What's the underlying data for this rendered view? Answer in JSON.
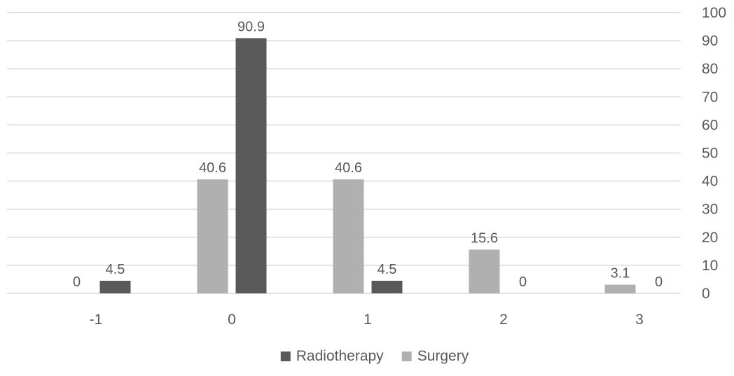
{
  "chart_data": {
    "type": "bar",
    "categories": [
      "-1",
      "0",
      "1",
      "2",
      "3"
    ],
    "series": [
      {
        "name": "Surgery",
        "color": "#b0b0b0",
        "values": [
          0,
          40.6,
          40.6,
          15.6,
          3.1
        ]
      },
      {
        "name": "Radiotherapy",
        "color": "#595959",
        "values": [
          4.5,
          90.9,
          4.5,
          0,
          0
        ]
      }
    ],
    "ylim": [
      0,
      100
    ],
    "yticks": [
      0,
      10,
      20,
      30,
      40,
      50,
      60,
      70,
      80,
      90,
      100
    ],
    "y_axis_side": "right",
    "grid": true,
    "legend": {
      "position": "bottom",
      "entries": [
        {
          "label": "Radiotherapy",
          "color": "#595959"
        },
        {
          "label": "Surgery",
          "color": "#b0b0b0"
        }
      ]
    }
  }
}
